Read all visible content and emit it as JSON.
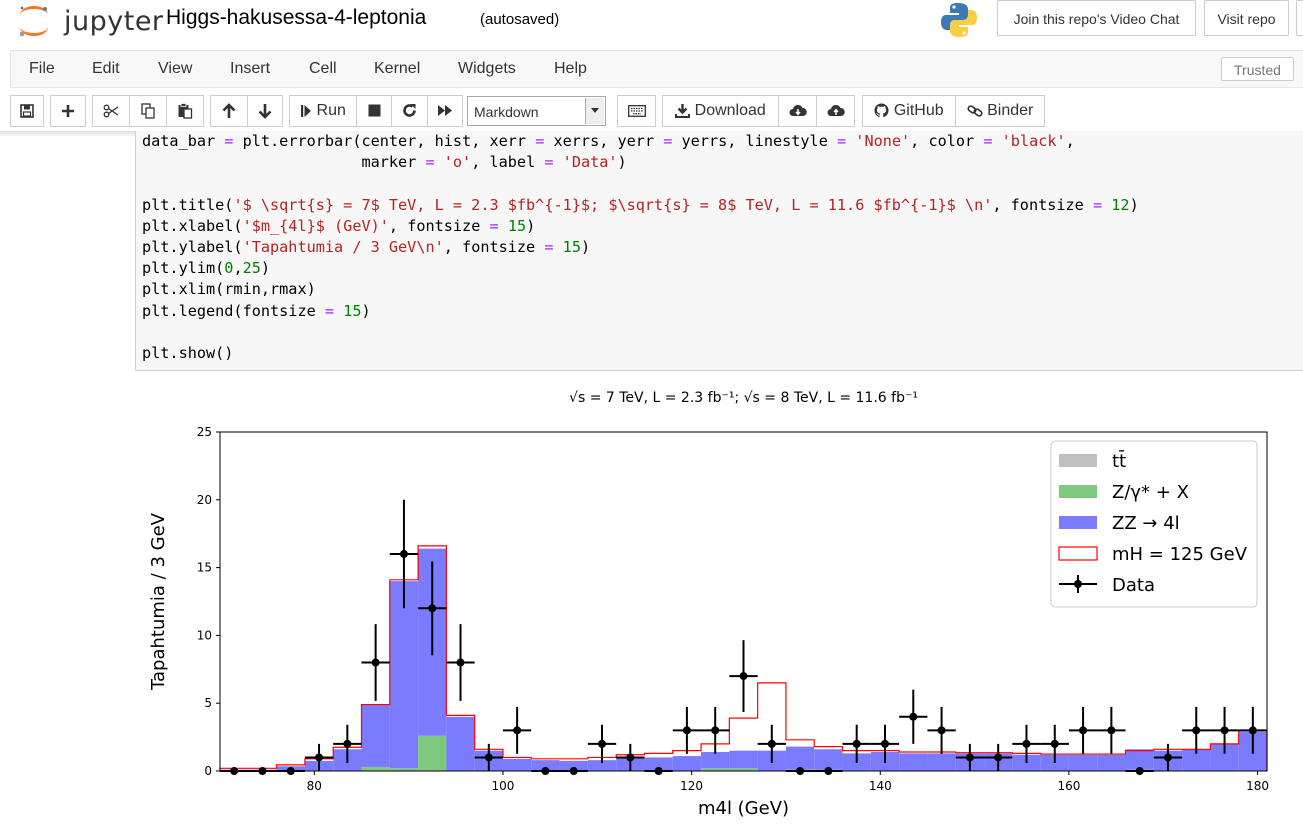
{
  "app": {
    "logo_text": "jupyter",
    "notebook_name": "Higgs-hakusessa-4-leptonia",
    "autosave_status": "(autosaved)",
    "video_chat_label": "Join this repo's Video Chat",
    "visit_repo_label": "Visit repo"
  },
  "menu": {
    "items": [
      "File",
      "Edit",
      "View",
      "Insert",
      "Cell",
      "Kernel",
      "Widgets",
      "Help"
    ],
    "trusted_label": "Trusted"
  },
  "toolbar": {
    "run_label": "Run",
    "cell_type": "Markdown",
    "download_label": "Download",
    "github_label": "GitHub",
    "binder_label": "Binder"
  },
  "code_lines": [
    "data_bar = plt.errorbar(center, hist, xerr = xerrs, yerr = yerrs, linestyle = 'None', color = 'black',",
    "                        marker = 'o', label = 'Data')",
    "",
    "plt.title('$ \\sqrt{s} = 7$ TeV, L = 2.3 $fb^{-1}$; $\\sqrt{s} = 8$ TeV, L = 11.6 $fb^{-1}$ \\n', fontsize = 12)",
    "plt.xlabel('$m_{4l}$ (GeV)', fontsize = 15)",
    "plt.ylabel('Tapahtumia / 3 GeV\\n', fontsize = 15)",
    "plt.ylim(0,25)",
    "plt.xlim(rmin,rmax)",
    "plt.legend(fontsize = 15)",
    "",
    "plt.show()"
  ],
  "chart_data": {
    "type": "bar",
    "title": "√s = 7 TeV, L = 2.3 fb⁻¹; √s = 8 TeV, L = 11.6 fb⁻¹",
    "xlabel": "m4l (GeV)",
    "ylabel": "Tapahtumia / 3 GeV",
    "xlim": [
      70,
      181
    ],
    "ylim": [
      0,
      25
    ],
    "x_ticks": [
      80,
      100,
      120,
      140,
      160,
      180
    ],
    "y_ticks": [
      0,
      5,
      10,
      15,
      20,
      25
    ],
    "bin_width": 3,
    "bin_centers": [
      71.5,
      74.5,
      77.5,
      80.5,
      83.5,
      86.5,
      89.5,
      92.5,
      95.5,
      98.5,
      101.5,
      104.5,
      107.5,
      110.5,
      113.5,
      116.5,
      119.5,
      122.5,
      125.5,
      128.5,
      131.5,
      134.5,
      137.5,
      140.5,
      143.5,
      146.5,
      149.5,
      152.5,
      155.5,
      158.5,
      161.5,
      164.5,
      167.5,
      170.5,
      173.5,
      176.5,
      179.5
    ],
    "legend": {
      "placement": "top-right",
      "entries": [
        {
          "label": "tt̄",
          "color": "#c0c0c0",
          "kind": "patch"
        },
        {
          "label": "Z/γ* + X",
          "color": "#7fc97f",
          "kind": "patch"
        },
        {
          "label": "ZZ → 4l",
          "color": "#7b7bff",
          "kind": "patch"
        },
        {
          "label": "mH = 125 GeV",
          "color": "#ff0000",
          "kind": "outline"
        },
        {
          "label": "Data",
          "color": "#000000",
          "kind": "errorbar"
        }
      ]
    },
    "series": [
      {
        "name": "tt̄",
        "color": "#c0c0c0",
        "values": [
          0,
          0,
          0,
          0,
          0,
          0,
          0,
          0,
          0,
          0,
          0,
          0,
          0,
          0,
          0,
          0,
          0,
          0,
          0,
          0,
          0,
          0,
          0,
          0,
          0,
          0,
          0,
          0,
          0,
          0,
          0,
          0,
          0,
          0,
          0,
          0,
          0
        ]
      },
      {
        "name": "Z/γ* + X",
        "color": "#7fc97f",
        "values": [
          0,
          0,
          0,
          0,
          0,
          0.3,
          0.2,
          2.6,
          0,
          0,
          0,
          0,
          0,
          0,
          0,
          0,
          0,
          0.2,
          0.2,
          0,
          0.1,
          0.1,
          0,
          0,
          0,
          0,
          0,
          0,
          0,
          0,
          0,
          0,
          0.1,
          0,
          0,
          0,
          0
        ]
      },
      {
        "name": "ZZ → 4l",
        "color": "#7b7bff",
        "values": [
          0.1,
          0.1,
          0.35,
          0.75,
          1.6,
          4.6,
          13.8,
          13.8,
          4.0,
          1.5,
          0.9,
          0.8,
          0.75,
          0.8,
          0.95,
          1.0,
          1.1,
          1.2,
          1.3,
          1.5,
          1.7,
          1.5,
          1.3,
          1.4,
          1.3,
          1.3,
          1.3,
          1.3,
          1.2,
          1.2,
          1.2,
          1.2,
          1.5,
          1.5,
          1.6,
          2.0,
          2.9
        ]
      },
      {
        "name": "mH = 125 GeV",
        "color": "#ff0000",
        "values": [
          0.2,
          0.2,
          0.45,
          0.9,
          1.75,
          4.9,
          14.1,
          16.6,
          4.1,
          1.6,
          1.0,
          0.9,
          0.9,
          1.0,
          1.2,
          1.3,
          1.5,
          2.0,
          3.9,
          6.5,
          2.3,
          1.8,
          1.5,
          1.5,
          1.4,
          1.4,
          1.35,
          1.35,
          1.3,
          1.25,
          1.25,
          1.25,
          1.5,
          1.6,
          1.6,
          2.0,
          3.0
        ]
      }
    ],
    "data_points": {
      "name": "Data",
      "x": [
        71.5,
        74.5,
        77.5,
        80.5,
        83.5,
        86.5,
        89.5,
        92.5,
        95.5,
        98.5,
        101.5,
        104.5,
        107.5,
        110.5,
        113.5,
        116.5,
        119.5,
        122.5,
        125.5,
        128.5,
        131.5,
        134.5,
        137.5,
        140.5,
        143.5,
        146.5,
        149.5,
        152.5,
        155.5,
        158.5,
        161.5,
        164.5,
        167.5,
        170.5,
        173.5,
        176.5,
        179.5
      ],
      "y": [
        0,
        0,
        0,
        1,
        2,
        8,
        16,
        12,
        8,
        1,
        3,
        0,
        0,
        2,
        1,
        0,
        3,
        3,
        7,
        2,
        0,
        0,
        2,
        2,
        4,
        3,
        1,
        1,
        2,
        2,
        3,
        3,
        0,
        1,
        3,
        3,
        3
      ],
      "yerr": [
        0,
        0,
        0,
        1,
        1.41,
        2.83,
        4,
        3.46,
        2.83,
        1,
        1.73,
        0,
        0,
        1.41,
        1,
        0,
        1.73,
        1.73,
        2.65,
        1.41,
        0,
        0,
        1.41,
        1.41,
        2,
        1.73,
        1,
        1,
        1.41,
        1.41,
        1.73,
        1.73,
        0,
        1,
        1.73,
        1.73,
        1.73
      ]
    }
  }
}
